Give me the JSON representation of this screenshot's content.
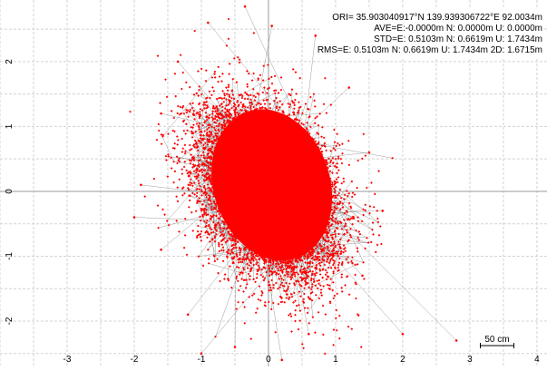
{
  "header": {
    "ori": "ORI= 35.903040917°N  139.939306722°E 92.0034m",
    "ave": "AVE=E:-0.0000m N: 0.0000m U: 0.0000m",
    "std": "STD=E: 0.5103m N: 0.6619m U: 1.7434m",
    "rms": "RMS=E: 0.5103m N: 0.6619m U: 1.7434m 2D: 1.6715m"
  },
  "scale_bar": {
    "label": "50 cm",
    "length_m": 0.5
  },
  "colors": {
    "points": "#ff0000",
    "track": "#8c8c8c",
    "grid": "#d3d3d3",
    "axis": "#9a9a9a"
  },
  "chart_data": {
    "type": "scatter",
    "title": "",
    "xlabel": "",
    "ylabel": "",
    "xlim": [
      -4.0,
      4.15
    ],
    "ylim": [
      -2.7,
      2.95
    ],
    "x_ticks": [
      -3,
      -2,
      -1,
      0,
      1,
      2,
      3,
      4
    ],
    "y_ticks": [
      -2,
      -1,
      0,
      1,
      2
    ],
    "x_tick_labels": [
      "-3",
      "-2",
      "-1",
      "0",
      "1",
      "2",
      "3",
      "4"
    ],
    "y_tick_labels": [
      "-2",
      "-1",
      "0",
      "1",
      "2"
    ],
    "minor_grid_step": 0.5,
    "grid": true,
    "series": [
      {
        "points_mean_e": 0.0,
        "points_mean_n": 0.0,
        "points_std_e": 0.5103,
        "points_std_n": 0.6619,
        "sample_points": [
          [
            -0.35,
            2.85
          ],
          [
            -0.9,
            2.6
          ],
          [
            0.05,
            2.55
          ],
          [
            0.7,
            2.4
          ],
          [
            -1.35,
            2.0
          ],
          [
            1.2,
            1.6
          ],
          [
            -1.6,
            1.2
          ],
          [
            1.5,
            0.6
          ],
          [
            -1.9,
            0.1
          ],
          [
            1.7,
            -0.3
          ],
          [
            -1.6,
            -0.9
          ],
          [
            1.4,
            -1.3
          ],
          [
            -1.2,
            -1.9
          ],
          [
            0.6,
            -2.2
          ],
          [
            -0.5,
            -2.4
          ],
          [
            2.0,
            -2.2
          ],
          [
            2.8,
            -2.3
          ],
          [
            -2.0,
            -0.4
          ],
          [
            -1.0,
            -2.5
          ],
          [
            0.2,
            -2.6
          ]
        ]
      }
    ]
  }
}
